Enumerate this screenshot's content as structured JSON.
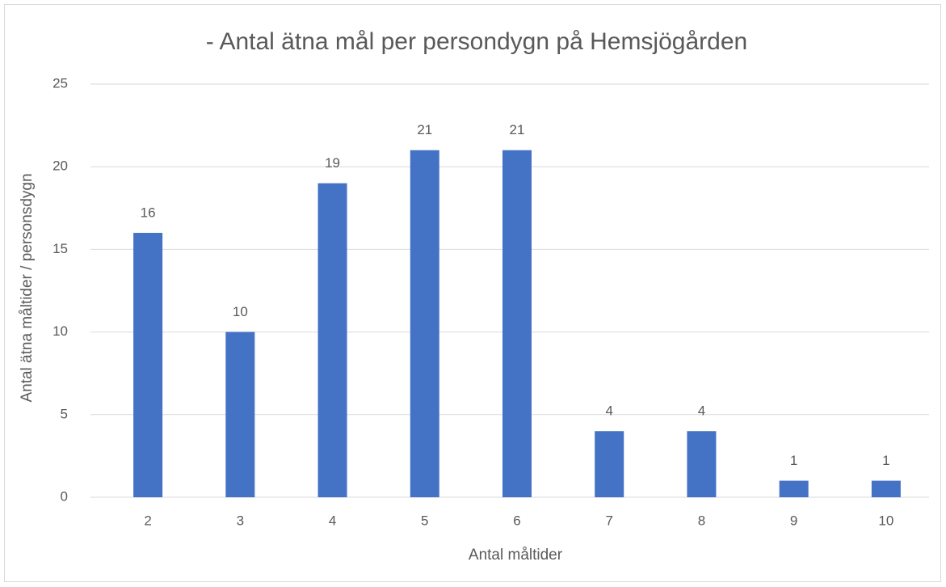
{
  "chart_data": {
    "type": "bar",
    "title": "- Antal ätna mål per persondygn på Hemsjögården",
    "x_label": "Antal måltider",
    "y_label": "Antal ätna måltider / personsdygn",
    "categories": [
      "2",
      "3",
      "4",
      "5",
      "6",
      "7",
      "8",
      "9",
      "10"
    ],
    "values": [
      16,
      10,
      19,
      21,
      21,
      4,
      4,
      1,
      1
    ],
    "color": "#4472c4",
    "ylim": [
      0,
      25
    ],
    "yticks": [
      0,
      5,
      10,
      15,
      20,
      25
    ],
    "grid": true
  }
}
